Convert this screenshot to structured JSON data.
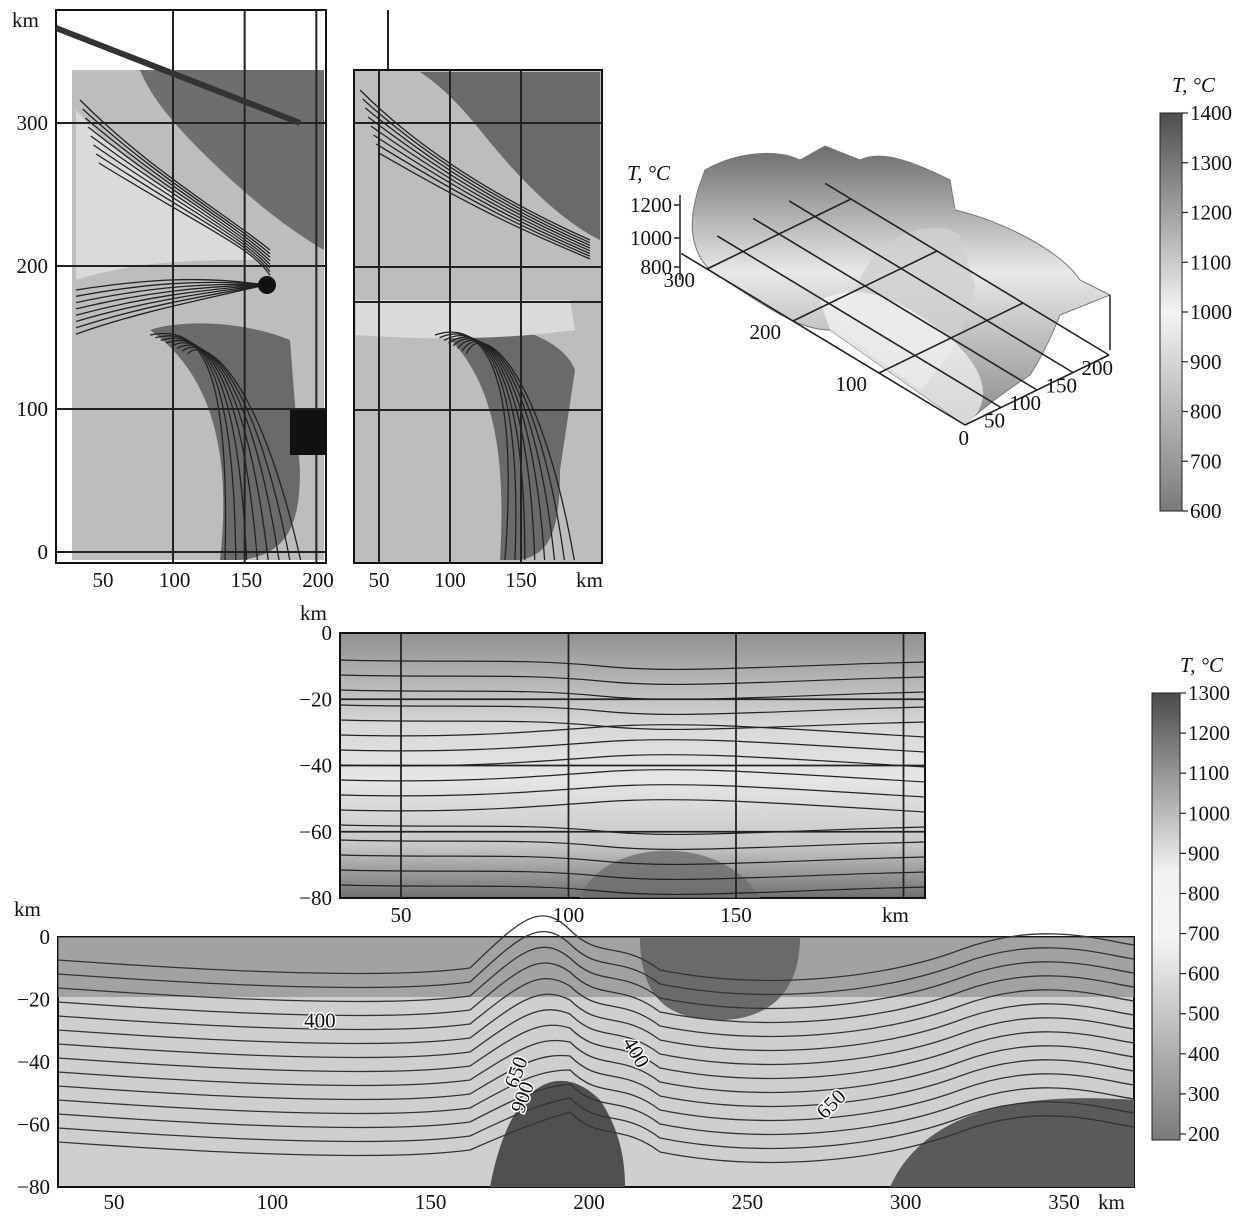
{
  "chart_data": [
    {
      "type": "heatmap",
      "panel": "map-left",
      "title": "",
      "xlabel": "",
      "ylabel": "km",
      "xticks": [
        50,
        100,
        150,
        200
      ],
      "yticks": [
        0,
        100,
        200,
        300
      ],
      "xlim": [
        20,
        210
      ],
      "ylim": [
        -10,
        380
      ]
    },
    {
      "type": "heatmap",
      "panel": "map-middle",
      "title": "",
      "xlabel": "km",
      "ylabel": "",
      "xticks": [
        50,
        100,
        150
      ],
      "xlim": [
        25,
        195
      ]
    },
    {
      "type": "surface",
      "panel": "surface-3d",
      "zlabel": "T, °C",
      "zticks": [
        800,
        1000,
        1200
      ],
      "xticks": [
        0,
        50,
        100,
        150,
        200
      ],
      "yticks": [
        100,
        200,
        300
      ]
    },
    {
      "type": "colorbar",
      "panel": "colorbar-top",
      "label": "T, °C",
      "ticks": [
        1400,
        1300,
        1200,
        1100,
        1000,
        900,
        800,
        700,
        600
      ],
      "range": [
        600,
        1400
      ]
    },
    {
      "type": "heatmap",
      "panel": "section-middle",
      "xlabel": "km",
      "ylabel": "km",
      "xticks": [
        50,
        100,
        150
      ],
      "yticks": [
        0,
        -20,
        -40,
        -60,
        -80
      ],
      "xlim": [
        31,
        205
      ],
      "ylim": [
        -80,
        0
      ]
    },
    {
      "type": "heatmap",
      "panel": "section-bottom",
      "xlabel": "km",
      "ylabel": "km",
      "xticks": [
        50,
        100,
        150,
        200,
        250,
        300,
        350
      ],
      "yticks": [
        0,
        -20,
        -40,
        -60,
        -80
      ],
      "xlim": [
        32,
        360
      ],
      "ylim": [
        -80,
        0
      ],
      "annotations": [
        {
          "text": "400",
          "x": 115,
          "y": -29
        },
        {
          "text": "650",
          "x": 179,
          "y": -44
        },
        {
          "text": "900",
          "x": 181,
          "y": -52
        },
        {
          "text": "400",
          "x": 213,
          "y": -38
        },
        {
          "text": "650",
          "x": 278,
          "y": -55
        }
      ]
    },
    {
      "type": "colorbar",
      "panel": "colorbar-bottom",
      "label": "T, °C",
      "ticks": [
        1300,
        1200,
        1100,
        1000,
        900,
        800,
        700,
        600,
        500,
        400,
        300,
        200
      ],
      "range": [
        200,
        1300
      ]
    }
  ]
}
